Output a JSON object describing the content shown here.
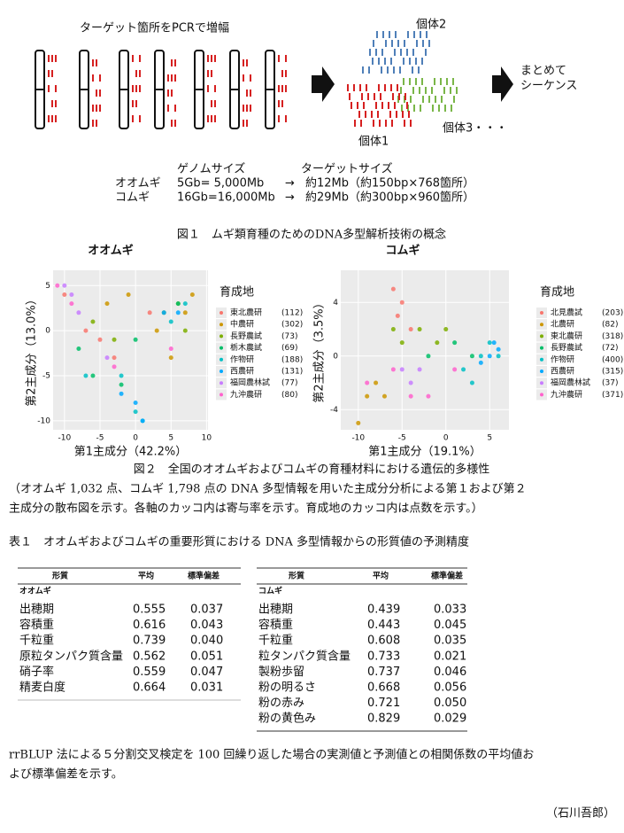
{
  "figure1": {
    "pcr_label": "ターゲット箇所をPCRで増幅",
    "individual1": "個体1",
    "individual2": "個体2",
    "individual3": "個体3・・・",
    "sequence": [
      "まとめて",
      "シーケンス"
    ],
    "genome_header": [
      "ゲノムサイズ",
      "ターゲットサイズ"
    ],
    "genome_rows": [
      [
        "オオムギ",
        "5Gb= 5,000Mb",
        "→",
        "約12Mb（約150bp×768箇所）"
      ],
      [
        "コムギ",
        "16Gb=16,000Mb",
        "→",
        "約29Mb（約300bp×960箇所）"
      ]
    ],
    "caption": "図１　ムギ類育種のためのDNA多型解析技術の概念"
  },
  "chart_data": [
    {
      "type": "scatter",
      "title": "オオムギ",
      "xlabel": "第1主成分（42.2%）",
      "ylabel": "第2主成分（13.0%）",
      "legend_title": "育成地",
      "xlim": [
        -11.6,
        10.2
      ],
      "ylim": [
        -11,
        6.7
      ],
      "xticks": [
        -10,
        -5,
        0,
        5,
        10
      ],
      "yticks": [
        5,
        0,
        -5,
        -10
      ],
      "series": [
        {
          "name": "東北農研",
          "count": "(112)",
          "color": "#F8766D",
          "x": [
            -10,
            -7,
            -5,
            -3,
            2
          ],
          "y": [
            4,
            0,
            -1,
            -3,
            2
          ]
        },
        {
          "name": "中農研",
          "count": "(302)",
          "color": "#CD9600",
          "x": [
            -1,
            3,
            5,
            7,
            8,
            -4
          ],
          "y": [
            4,
            0,
            -3,
            2,
            4,
            3
          ]
        },
        {
          "name": "長野農試",
          "count": "(73)",
          "color": "#7CAE00",
          "x": [
            4,
            6,
            -6,
            -3,
            7
          ],
          "y": [
            2,
            3,
            1,
            -1,
            0
          ]
        },
        {
          "name": "栃木農試",
          "count": "(69)",
          "color": "#00BE67",
          "x": [
            -8,
            -6,
            -2,
            6,
            0
          ],
          "y": [
            -2,
            -5,
            -6,
            3,
            -1
          ]
        },
        {
          "name": "作物研",
          "count": "(188)",
          "color": "#00BFC4",
          "x": [
            -7,
            -2,
            0,
            1,
            5,
            7
          ],
          "y": [
            -5,
            -5,
            -9,
            -10,
            1,
            3
          ]
        },
        {
          "name": "西農研",
          "count": "(131)",
          "color": "#00A9FF",
          "x": [
            0,
            1,
            -2,
            4,
            6
          ],
          "y": [
            -8,
            -10,
            -7,
            2,
            2
          ]
        },
        {
          "name": "福岡農林試",
          "count": "(77)",
          "color": "#C77CFF",
          "x": [
            -10,
            -9,
            -4,
            -8
          ],
          "y": [
            5,
            4,
            -3,
            2
          ]
        },
        {
          "name": "九沖農研",
          "count": "(80)",
          "color": "#FF61CC",
          "x": [
            -11,
            -9,
            -3,
            5
          ],
          "y": [
            5,
            3,
            -4,
            -2
          ]
        }
      ]
    },
    {
      "type": "scatter",
      "title": "コムギ",
      "xlabel": "第1主成分（19.1%）",
      "ylabel": "第2主成分（3.5%）",
      "legend_title": "育成地",
      "xlim": [
        -12,
        7.2
      ],
      "ylim": [
        -5.5,
        6.4
      ],
      "xticks": [
        -10,
        -5,
        0,
        5
      ],
      "yticks": [
        4,
        0,
        -4
      ],
      "series": [
        {
          "name": "北見農試",
          "count": "(203)",
          "color": "#F8766D",
          "x": [
            -6,
            -5,
            -5.5,
            -4
          ],
          "y": [
            5,
            4,
            3,
            2
          ]
        },
        {
          "name": "北農研",
          "count": "(82)",
          "color": "#CD9600",
          "x": [
            -7,
            -9,
            -10,
            -8
          ],
          "y": [
            -3,
            -3,
            -5,
            -2
          ]
        },
        {
          "name": "東北農研",
          "count": "(318)",
          "color": "#7CAE00",
          "x": [
            -6,
            -3,
            -1,
            -5,
            0
          ],
          "y": [
            2,
            2,
            1,
            1,
            2
          ]
        },
        {
          "name": "長野農試",
          "count": "(72)",
          "color": "#00BE67",
          "x": [
            -2,
            1,
            3
          ],
          "y": [
            0,
            1,
            0
          ]
        },
        {
          "name": "作物研",
          "count": "(400)",
          "color": "#00BFC4",
          "x": [
            4,
            5,
            6,
            2,
            3
          ],
          "y": [
            0,
            1,
            0,
            -1,
            -2
          ]
        },
        {
          "name": "西農研",
          "count": "(315)",
          "color": "#00A9FF",
          "x": [
            5,
            6,
            4,
            5.5
          ],
          "y": [
            0,
            0.5,
            -0.5,
            1
          ]
        },
        {
          "name": "福岡農林試",
          "count": "(37)",
          "color": "#C77CFF",
          "x": [
            -4,
            -3,
            -5
          ],
          "y": [
            -2,
            -1,
            -1
          ]
        },
        {
          "name": "九沖農研",
          "count": "(371)",
          "color": "#FF61CC",
          "x": [
            -9,
            -6,
            -2,
            1,
            -4
          ],
          "y": [
            -2,
            -1,
            -3,
            -1,
            -3
          ]
        }
      ]
    }
  ],
  "figure2_caption": [
    "図２　全国のオオムギおよびコムギの育種材料における遺伝的多様性",
    "（オオムギ 1,032 点、コムギ 1,798 点の DNA 多型情報を用いた主成分分析による第１および第２",
    "主成分の散布図を示す。各軸のカッコ内は寄与率を示す。育成地のカッコ内は点数を示す。）"
  ],
  "table": {
    "caption": "表１　オオムギおよびコムギの重要形質における DNA 多型情報からの形質値の予測精度",
    "header": [
      "形質",
      "平均",
      "標準偏差"
    ],
    "left_group": "オオムギ",
    "right_group": "コムギ",
    "left_rows": [
      [
        "出穂期",
        "0.555",
        "0.037"
      ],
      [
        "容積重",
        "0.616",
        "0.043"
      ],
      [
        "千粒重",
        "0.739",
        "0.040"
      ],
      [
        "原粒タンパク質含量",
        "0.562",
        "0.051"
      ],
      [
        "硝子率",
        "0.559",
        "0.047"
      ],
      [
        "精麦白度",
        "0.664",
        "0.031"
      ]
    ],
    "right_rows": [
      [
        "出穂期",
        "0.439",
        "0.033"
      ],
      [
        "容積重",
        "0.443",
        "0.045"
      ],
      [
        "千粒重",
        "0.608",
        "0.035"
      ],
      [
        "粒タンパク質含量",
        "0.733",
        "0.021"
      ],
      [
        "製粉歩留",
        "0.737",
        "0.046"
      ],
      [
        "粉の明るさ",
        "0.668",
        "0.056"
      ],
      [
        "粉の赤み",
        "0.721",
        "0.050"
      ],
      [
        "粉の黄色み",
        "0.829",
        "0.029"
      ]
    ]
  },
  "footnote": [
    "rrBLUP 法による５分割交叉検定を 100 回繰り返した場合の実測値と予測値との相関係数の平均値お",
    "よび標準偏差を示す。"
  ],
  "author": "（石川吾郎）"
}
